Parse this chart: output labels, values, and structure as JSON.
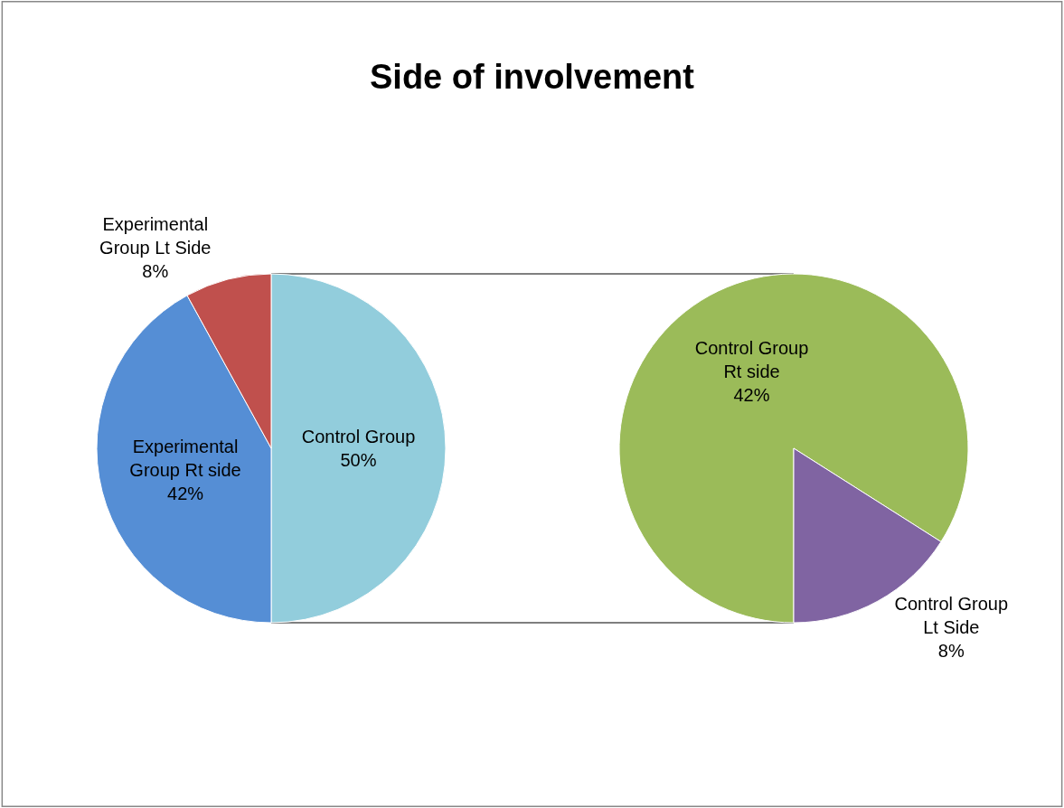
{
  "chart_data": [
    {
      "type": "pie",
      "title": "Side of involvement",
      "categories": [
        "Control Group",
        "Experimental Group Rt side",
        "Experimental Group Lt Side"
      ],
      "values": [
        50,
        42,
        8
      ],
      "value_labels": [
        "50%",
        "42%",
        "8%"
      ],
      "colors": [
        "#92cddc",
        "#558ed5",
        "#c0504d"
      ],
      "legend": false
    },
    {
      "type": "pie",
      "categories": [
        "Control Group Rt side",
        "Control Group Lt Side"
      ],
      "values": [
        42,
        8
      ],
      "value_labels": [
        "42%",
        "8%"
      ],
      "colors": [
        "#9bbb59",
        "#8064a2"
      ],
      "legend": false
    }
  ]
}
